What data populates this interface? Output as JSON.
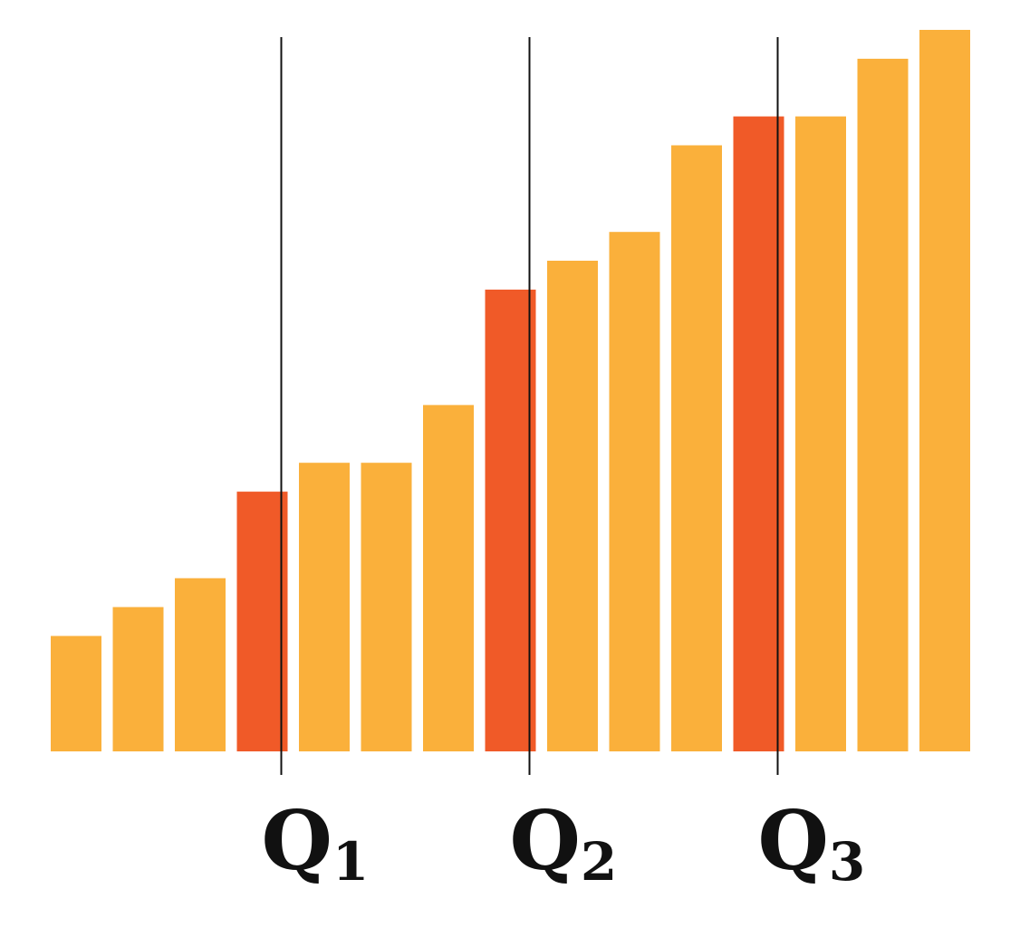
{
  "chart_data": {
    "type": "bar",
    "values": [
      4,
      5,
      6,
      9,
      10,
      10,
      12,
      16,
      17,
      18,
      21,
      22,
      22,
      24,
      25
    ],
    "ylim": [
      0,
      25
    ],
    "highlighted_indices": [
      3,
      7,
      11
    ],
    "colors": {
      "bar": "#FAB03B",
      "highlight": "#F05A28",
      "marker_line": "#111111"
    },
    "quartile_markers": [
      {
        "label": "Q",
        "subscript": "1",
        "bar_index": 3
      },
      {
        "label": "Q",
        "subscript": "2",
        "bar_index": 7
      },
      {
        "label": "Q",
        "subscript": "3",
        "bar_index": 11
      }
    ],
    "grid": false,
    "legend": "none"
  }
}
